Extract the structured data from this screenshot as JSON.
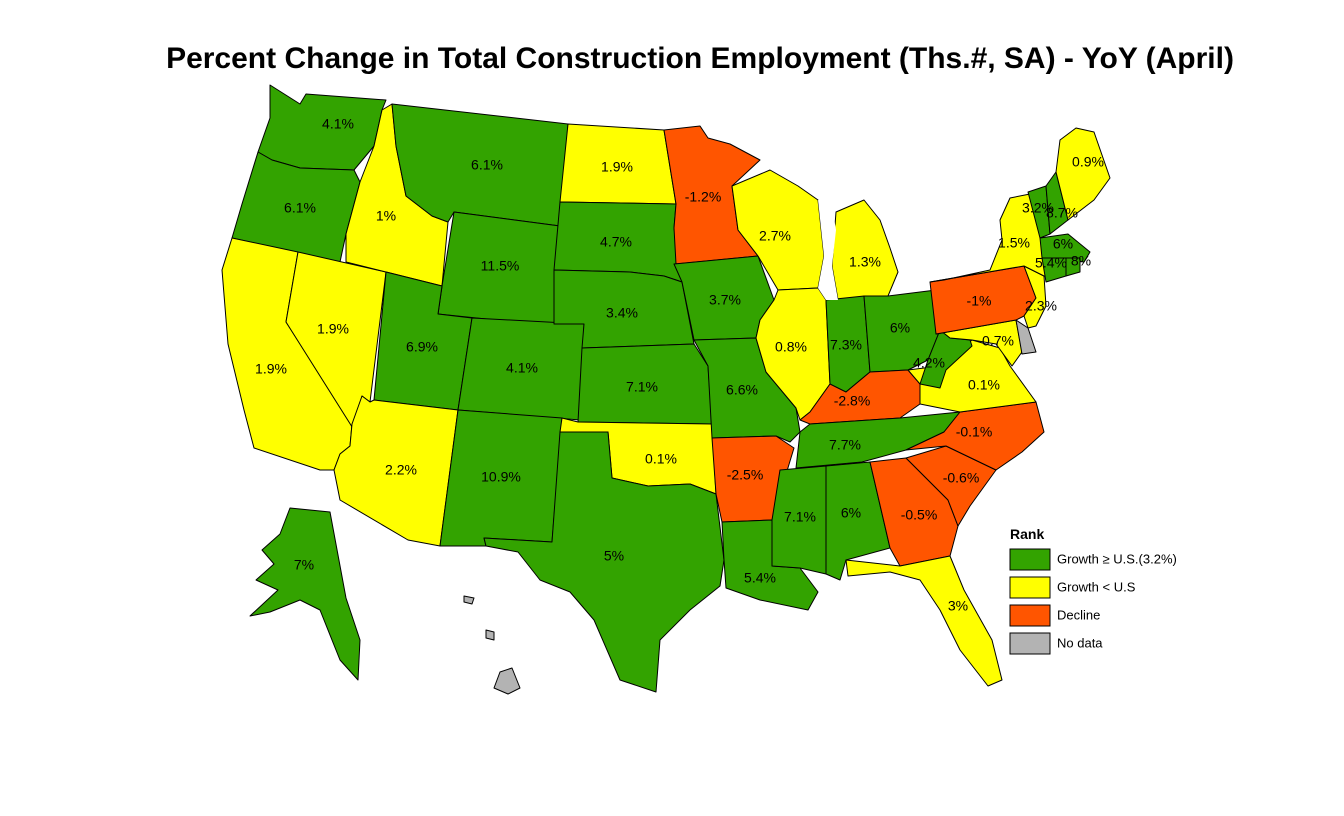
{
  "title": "Percent Change in Total Construction Employment (Ths.#, SA) - YoY (April)",
  "colors": {
    "growth_above": "#33a300",
    "growth_below": "#ffff00",
    "decline": "#ff5500",
    "no_data": "#b3b3b3"
  },
  "legend": {
    "title": "Rank",
    "items": [
      {
        "key": "growth_above",
        "label": "Growth ≥ U.S.(3.2%)"
      },
      {
        "key": "growth_below",
        "label": "Growth < U.S"
      },
      {
        "key": "decline",
        "label": "Decline"
      },
      {
        "key": "no_data",
        "label": "No data"
      }
    ]
  },
  "states": [
    {
      "id": "WA",
      "value": "4.1%",
      "cat": "growth_above"
    },
    {
      "id": "OR",
      "value": "6.1%",
      "cat": "growth_above"
    },
    {
      "id": "CA",
      "value": "1.9%",
      "cat": "growth_below"
    },
    {
      "id": "NV",
      "value": "1.9%",
      "cat": "growth_below"
    },
    {
      "id": "ID",
      "value": "1%",
      "cat": "growth_below"
    },
    {
      "id": "MT",
      "value": "6.1%",
      "cat": "growth_above"
    },
    {
      "id": "WY",
      "value": "11.5%",
      "cat": "growth_above"
    },
    {
      "id": "UT",
      "value": "6.9%",
      "cat": "growth_above"
    },
    {
      "id": "AZ",
      "value": "2.2%",
      "cat": "growth_below"
    },
    {
      "id": "CO",
      "value": "4.1%",
      "cat": "growth_above"
    },
    {
      "id": "NM",
      "value": "10.9%",
      "cat": "growth_above"
    },
    {
      "id": "ND",
      "value": "1.9%",
      "cat": "growth_below"
    },
    {
      "id": "SD",
      "value": "4.7%",
      "cat": "growth_above"
    },
    {
      "id": "NE",
      "value": "3.4%",
      "cat": "growth_above"
    },
    {
      "id": "KS",
      "value": "7.1%",
      "cat": "growth_above"
    },
    {
      "id": "OK",
      "value": "0.1%",
      "cat": "growth_below"
    },
    {
      "id": "TX",
      "value": "5%",
      "cat": "growth_above"
    },
    {
      "id": "MN",
      "value": "-1.2%",
      "cat": "decline"
    },
    {
      "id": "IA",
      "value": "3.7%",
      "cat": "growth_above"
    },
    {
      "id": "MO",
      "value": "6.6%",
      "cat": "growth_above"
    },
    {
      "id": "AR",
      "value": "-2.5%",
      "cat": "decline"
    },
    {
      "id": "LA",
      "value": "5.4%",
      "cat": "growth_above"
    },
    {
      "id": "WI",
      "value": "2.7%",
      "cat": "growth_below"
    },
    {
      "id": "IL",
      "value": "0.8%",
      "cat": "growth_below"
    },
    {
      "id": "MI",
      "value": "1.3%",
      "cat": "growth_below"
    },
    {
      "id": "IN",
      "value": "7.3%",
      "cat": "growth_above"
    },
    {
      "id": "OH",
      "value": "6%",
      "cat": "growth_above"
    },
    {
      "id": "KY",
      "value": "-2.8%",
      "cat": "decline"
    },
    {
      "id": "TN",
      "value": "7.7%",
      "cat": "growth_above"
    },
    {
      "id": "MS",
      "value": "7.1%",
      "cat": "growth_above"
    },
    {
      "id": "AL",
      "value": "6%",
      "cat": "growth_above"
    },
    {
      "id": "GA",
      "value": "-0.5%",
      "cat": "decline"
    },
    {
      "id": "FL",
      "value": "3%",
      "cat": "growth_below"
    },
    {
      "id": "SC",
      "value": "-0.6%",
      "cat": "decline"
    },
    {
      "id": "NC",
      "value": "-0.1%",
      "cat": "decline"
    },
    {
      "id": "VA",
      "value": "0.1%",
      "cat": "growth_below"
    },
    {
      "id": "WV",
      "value": "4.2%",
      "cat": "growth_above"
    },
    {
      "id": "MD",
      "value": "0.7%",
      "cat": "growth_below"
    },
    {
      "id": "DE",
      "value": "",
      "cat": "no_data"
    },
    {
      "id": "PA",
      "value": "-1%",
      "cat": "decline"
    },
    {
      "id": "NJ",
      "value": "2.3%",
      "cat": "growth_below"
    },
    {
      "id": "NY",
      "value": "1.5%",
      "cat": "growth_below"
    },
    {
      "id": "VT",
      "value": "3.2%",
      "cat": "growth_above"
    },
    {
      "id": "NH",
      "value": "8.7%",
      "cat": "growth_above"
    },
    {
      "id": "ME",
      "value": "0.9%",
      "cat": "growth_below"
    },
    {
      "id": "MA",
      "value": "6%",
      "cat": "growth_above"
    },
    {
      "id": "CT",
      "value": "5.4%",
      "cat": "growth_above"
    },
    {
      "id": "RI",
      "value": "8%",
      "cat": "growth_above"
    },
    {
      "id": "AK",
      "value": "7%",
      "cat": "growth_above"
    },
    {
      "id": "HI",
      "value": "",
      "cat": "no_data"
    }
  ]
}
